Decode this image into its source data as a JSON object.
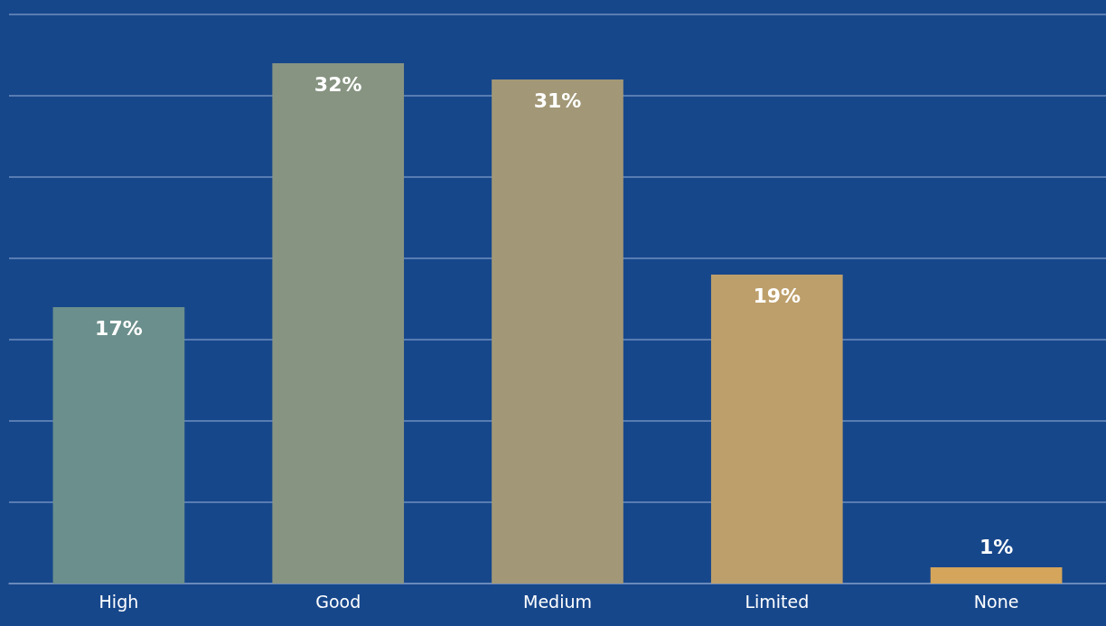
{
  "chart_data": {
    "type": "bar",
    "categories": [
      "High",
      "Good",
      "Medium",
      "Limited",
      "None"
    ],
    "values": [
      17,
      32,
      31,
      19,
      1
    ],
    "colors": [
      "#6b8f8c",
      "#879482",
      "#a29877",
      "#bd9f6b",
      "#d4a55a"
    ],
    "value_labels": [
      "17%",
      "32%",
      "31%",
      "19%",
      "1%"
    ],
    "ylim": [
      0,
      35
    ],
    "yticks": [
      {
        "value": 0,
        "label": null
      },
      {
        "value": 5,
        "label": null
      },
      {
        "value": 10,
        "label": null
      },
      {
        "value": 15,
        "label": null
      },
      {
        "value": 20,
        "label": null
      },
      {
        "value": 25,
        "label": null
      },
      {
        "value": 30,
        "label": null
      },
      {
        "value": 35,
        "label": null
      }
    ],
    "tick_labels": "x",
    "grid": "y"
  }
}
